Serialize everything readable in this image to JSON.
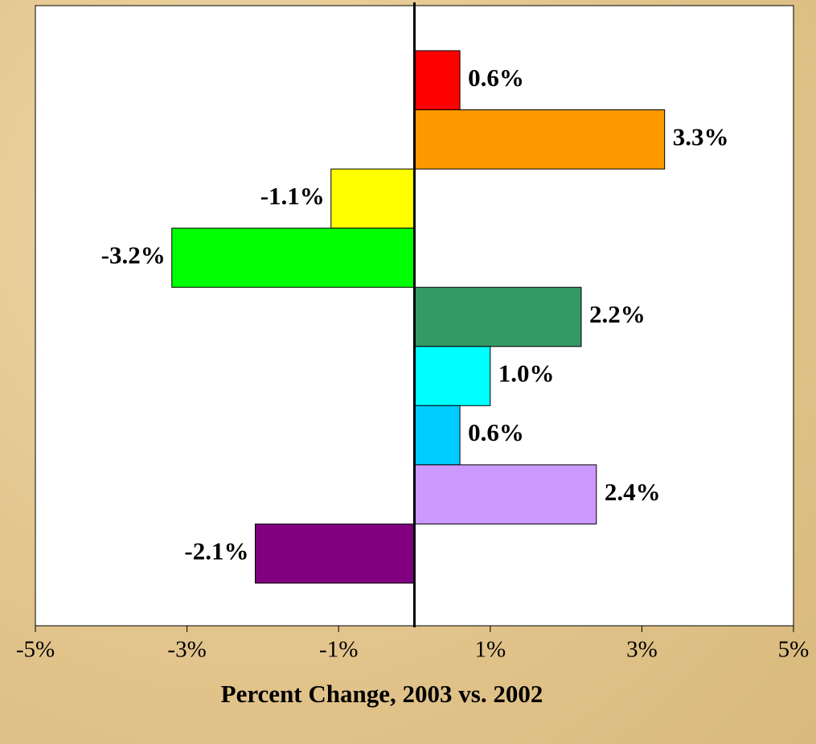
{
  "chart_data": {
    "type": "hbar",
    "xlabel": "Percent Change, 2003 vs. 2002",
    "categories": [
      null,
      null,
      null,
      null,
      null,
      null,
      null,
      null,
      null
    ],
    "values": [
      0.6,
      3.3,
      -1.1,
      -3.2,
      2.2,
      1.0,
      0.6,
      2.4,
      -2.1
    ],
    "value_labels": [
      "0.6%",
      "3.3%",
      "-1.1%",
      "-3.2%",
      "2.2%",
      "1.0%",
      "0.6%",
      "2.4%",
      "-2.1%"
    ],
    "colors": [
      "#ff0000",
      "#ff9900",
      "#ffff00",
      "#00ff00",
      "#339966",
      "#00ffff",
      "#00ccff",
      "#cc99ff",
      "#800080"
    ],
    "xlim": [
      -5,
      5
    ],
    "xticks": [
      {
        "value": -5,
        "label": "-5%"
      },
      {
        "value": -3,
        "label": "-3%"
      },
      {
        "value": -1,
        "label": "-1%"
      },
      {
        "value": 1,
        "label": "1%"
      },
      {
        "value": 3,
        "label": "3%"
      },
      {
        "value": 5,
        "label": "5%"
      }
    ]
  }
}
